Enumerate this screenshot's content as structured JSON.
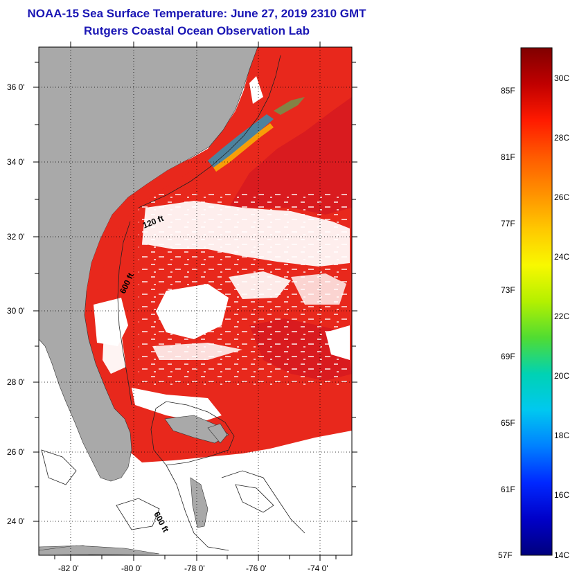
{
  "title_line1": "NOAA-15 Sea Surface Temperature:  June 27, 2019 2310 GMT",
  "title_line2": "Rutgers Coastal Ocean Observation Lab",
  "map": {
    "lat_labels": [
      "36 0'",
      "34 0'",
      "32 0'",
      "30 0'",
      "28 0'",
      "26 0'",
      "24 0'"
    ],
    "lon_labels": [
      "-82 0'",
      "-80 0'",
      "-78 0'",
      "-76 0'",
      "-74 0'"
    ],
    "contour_labels": [
      "120 ft",
      "600 ft",
      "600 ft"
    ]
  },
  "colorbar": {
    "fahrenheit_labels": [
      "85F",
      "81F",
      "77F",
      "73F",
      "69F",
      "65F",
      "61F",
      "57F"
    ],
    "celsius_labels": [
      "30C",
      "28C",
      "26C",
      "24C",
      "22C",
      "20C",
      "18C",
      "16C",
      "14C"
    ],
    "colors": [
      "#800000",
      "#c00000",
      "#ff1a00",
      "#ff5a00",
      "#ff9000",
      "#ffc800",
      "#f8f800",
      "#b4f000",
      "#50dc32",
      "#00d2b4",
      "#00c8f0",
      "#0080ff",
      "#0028ff",
      "#0000c8",
      "#00007d"
    ]
  },
  "colors": {
    "land": "#a9a9a9",
    "ocean_warm": "#e8281c",
    "ocean_hot": "#d0101c",
    "title": "#1a16b4"
  }
}
